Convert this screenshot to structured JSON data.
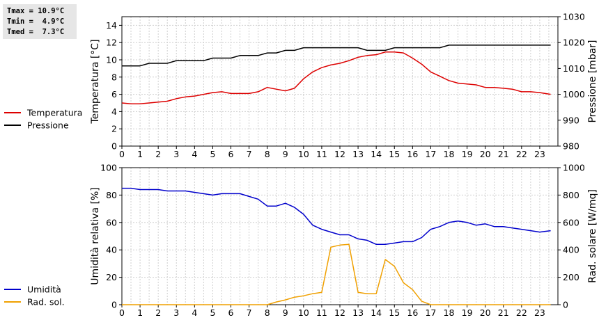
{
  "stats": {
    "tmax": "Tmax = 10.9°C",
    "tmin": "Tmin =  4.9°C",
    "tmed": "Tmed =  7.3°C"
  },
  "chart_data": [
    {
      "type": "line",
      "x_ticks": [
        0,
        1,
        2,
        3,
        4,
        5,
        6,
        7,
        8,
        9,
        10,
        11,
        12,
        13,
        14,
        15,
        16,
        17,
        18,
        19,
        20,
        21,
        22,
        23
      ],
      "xlim": [
        0,
        24
      ],
      "ylabel": "Temperatura [°C]",
      "ylim": [
        0,
        15
      ],
      "y_ticks": [
        0,
        2,
        4,
        6,
        8,
        10,
        12,
        14
      ],
      "y2label": "Pressione [mbar]",
      "y2lim": [
        980,
        1030
      ],
      "y2_ticks": [
        980,
        990,
        1000,
        1010,
        1020,
        1030
      ],
      "grid": true,
      "legend_position": "left",
      "series": [
        {
          "name": "Temperatura",
          "axis": "left",
          "color": "#dd0000",
          "points": [
            [
              0,
              5.0
            ],
            [
              0.5,
              4.9
            ],
            [
              1,
              4.9
            ],
            [
              1.5,
              5.0
            ],
            [
              2,
              5.1
            ],
            [
              2.5,
              5.2
            ],
            [
              3,
              5.5
            ],
            [
              3.5,
              5.7
            ],
            [
              4,
              5.8
            ],
            [
              4.5,
              6.0
            ],
            [
              5,
              6.2
            ],
            [
              5.5,
              6.3
            ],
            [
              6,
              6.1
            ],
            [
              6.5,
              6.1
            ],
            [
              7,
              6.1
            ],
            [
              7.5,
              6.3
            ],
            [
              8,
              6.8
            ],
            [
              8.5,
              6.6
            ],
            [
              9,
              6.4
            ],
            [
              9.5,
              6.7
            ],
            [
              10,
              7.8
            ],
            [
              10.5,
              8.6
            ],
            [
              11,
              9.1
            ],
            [
              11.5,
              9.4
            ],
            [
              12,
              9.6
            ],
            [
              12.5,
              9.9
            ],
            [
              13,
              10.3
            ],
            [
              13.5,
              10.5
            ],
            [
              14,
              10.6
            ],
            [
              14.5,
              10.9
            ],
            [
              15,
              10.9
            ],
            [
              15.5,
              10.8
            ],
            [
              16,
              10.2
            ],
            [
              16.5,
              9.5
            ],
            [
              17,
              8.6
            ],
            [
              17.5,
              8.1
            ],
            [
              18,
              7.6
            ],
            [
              18.5,
              7.3
            ],
            [
              19,
              7.2
            ],
            [
              19.5,
              7.1
            ],
            [
              20,
              6.8
            ],
            [
              20.5,
              6.8
            ],
            [
              21,
              6.7
            ],
            [
              21.5,
              6.6
            ],
            [
              22,
              6.3
            ],
            [
              22.5,
              6.3
            ],
            [
              23,
              6.2
            ],
            [
              23.6,
              6.0
            ]
          ]
        },
        {
          "name": "Pressione",
          "axis": "right",
          "color": "#000000",
          "points": [
            [
              0,
              1011
            ],
            [
              1,
              1011
            ],
            [
              1.5,
              1012
            ],
            [
              2.5,
              1012
            ],
            [
              3,
              1013
            ],
            [
              4.5,
              1013
            ],
            [
              5,
              1014
            ],
            [
              6,
              1014
            ],
            [
              6.5,
              1015
            ],
            [
              7.5,
              1015
            ],
            [
              8,
              1016
            ],
            [
              8.5,
              1016
            ],
            [
              9,
              1017
            ],
            [
              9.5,
              1017
            ],
            [
              10,
              1018
            ],
            [
              13,
              1018
            ],
            [
              13.5,
              1017
            ],
            [
              14.5,
              1017
            ],
            [
              15,
              1018
            ],
            [
              17.5,
              1018
            ],
            [
              18,
              1019
            ],
            [
              23.6,
              1019
            ]
          ]
        }
      ]
    },
    {
      "type": "line",
      "x_ticks": [
        0,
        1,
        2,
        3,
        4,
        5,
        6,
        7,
        8,
        9,
        10,
        11,
        12,
        13,
        14,
        15,
        16,
        17,
        18,
        19,
        20,
        21,
        22,
        23
      ],
      "xlim": [
        0,
        24
      ],
      "ylabel": "Umidità relativa [%]",
      "ylim": [
        0,
        100
      ],
      "y_ticks": [
        0,
        20,
        40,
        60,
        80,
        100
      ],
      "y2label": "Rad. solare [W/mq]",
      "y2lim": [
        0,
        1000
      ],
      "y2_ticks": [
        0,
        200,
        400,
        600,
        800,
        1000
      ],
      "grid": true,
      "legend_position": "left",
      "series": [
        {
          "name": "Umidità",
          "axis": "left",
          "color": "#0000cc",
          "points": [
            [
              0,
              85
            ],
            [
              0.5,
              85
            ],
            [
              1,
              84
            ],
            [
              2,
              84
            ],
            [
              2.5,
              83
            ],
            [
              3.5,
              83
            ],
            [
              4,
              82
            ],
            [
              5,
              80
            ],
            [
              5.5,
              81
            ],
            [
              6.5,
              81
            ],
            [
              7,
              79
            ],
            [
              7.5,
              77
            ],
            [
              8,
              72
            ],
            [
              8.5,
              72
            ],
            [
              9,
              74
            ],
            [
              9.5,
              71
            ],
            [
              10,
              66
            ],
            [
              10.5,
              58
            ],
            [
              11,
              55
            ],
            [
              11.5,
              53
            ],
            [
              12,
              51
            ],
            [
              12.5,
              51
            ],
            [
              13,
              48
            ],
            [
              13.5,
              47
            ],
            [
              14,
              44
            ],
            [
              14.5,
              44
            ],
            [
              15,
              45
            ],
            [
              15.5,
              46
            ],
            [
              16,
              46
            ],
            [
              16.5,
              49
            ],
            [
              17,
              55
            ],
            [
              17.5,
              57
            ],
            [
              18,
              60
            ],
            [
              18.5,
              61
            ],
            [
              19,
              60
            ],
            [
              19.5,
              58
            ],
            [
              20,
              59
            ],
            [
              20.5,
              57
            ],
            [
              21,
              57
            ],
            [
              21.5,
              56
            ],
            [
              22,
              55
            ],
            [
              22.5,
              54
            ],
            [
              23,
              53
            ],
            [
              23.6,
              54
            ]
          ]
        },
        {
          "name": "Rad. sol.",
          "axis": "right",
          "color": "#f0a000",
          "points": [
            [
              0,
              0
            ],
            [
              8,
              0
            ],
            [
              8.5,
              20
            ],
            [
              9,
              35
            ],
            [
              9.5,
              55
            ],
            [
              10,
              65
            ],
            [
              10.5,
              80
            ],
            [
              11,
              90
            ],
            [
              11.5,
              420
            ],
            [
              12,
              435
            ],
            [
              12.5,
              440
            ],
            [
              13,
              90
            ],
            [
              13.5,
              80
            ],
            [
              14,
              80
            ],
            [
              14.5,
              330
            ],
            [
              15,
              280
            ],
            [
              15.5,
              160
            ],
            [
              16,
              110
            ],
            [
              16.5,
              25
            ],
            [
              17,
              0
            ],
            [
              23.6,
              0
            ]
          ]
        }
      ]
    }
  ]
}
